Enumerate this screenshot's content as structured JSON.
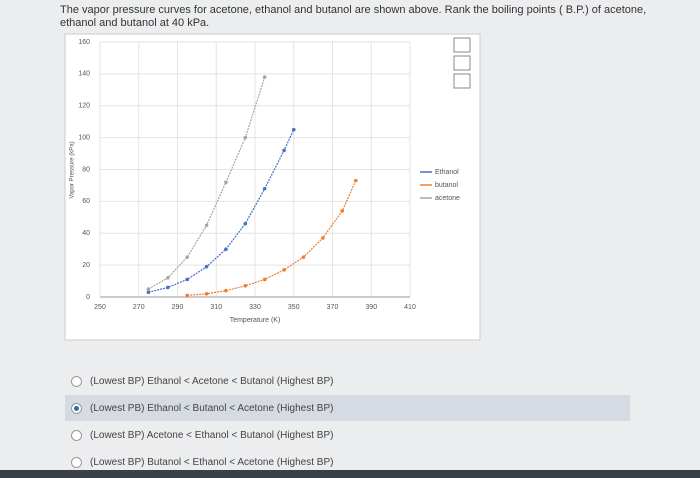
{
  "question": "The vapor pressure curves for acetone, ethanol and butanol are shown above. Rank the boiling points ( B.P.) of acetone, ethanol and butanol at 40 kPa.",
  "chart_data": {
    "type": "line",
    "x_label": "Temperature (K)",
    "y_label": "Vapor Pressure (kPa)",
    "xlim": [
      250,
      410
    ],
    "xticks": [
      250,
      270,
      290,
      310,
      330,
      350,
      370,
      390,
      410
    ],
    "ylim": [
      0,
      160
    ],
    "yticks": [
      0,
      20,
      40,
      60,
      80,
      100,
      120,
      140,
      160
    ],
    "grid": true,
    "legend": "right",
    "series": [
      {
        "name": "Ethanol",
        "color": "#4472c4",
        "x": [
          275,
          285,
          295,
          305,
          315,
          325,
          335,
          345,
          350
        ],
        "values": [
          3,
          6,
          11,
          19,
          30,
          46,
          68,
          92,
          105
        ]
      },
      {
        "name": "butanol",
        "color": "#ed7d31",
        "x": [
          295,
          305,
          315,
          325,
          335,
          345,
          355,
          365,
          375,
          382
        ],
        "values": [
          1,
          2,
          4,
          7,
          11,
          17,
          25,
          37,
          54,
          73
        ]
      },
      {
        "name": "acetone",
        "color": "#a5a5a5",
        "x": [
          275,
          285,
          295,
          305,
          315,
          325,
          335
        ],
        "values": [
          5,
          12,
          25,
          45,
          72,
          100,
          138
        ]
      }
    ]
  },
  "options": [
    "(Lowest BP) Ethanol < Acetone < Butanol (Highest BP)",
    "(Lowest PB) Ethanol < Butanol < Acetone (Highest BP)",
    "(Lowest BP) Acetone < Ethanol < Butanol (Highest BP)",
    "(Lowest BP) Butanol < Ethanol < Acetone (Highest BP)"
  ],
  "selected": 1
}
